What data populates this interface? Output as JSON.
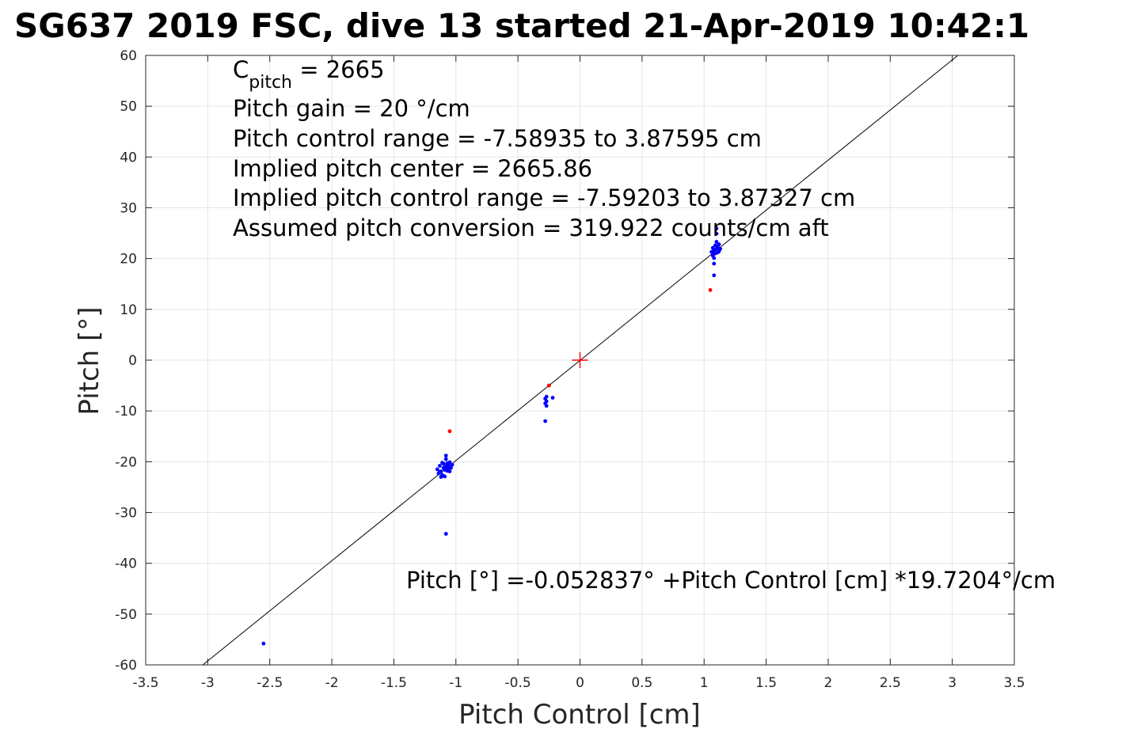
{
  "chart_data": {
    "type": "scatter",
    "title": "SG637 2019 FSC, dive 13 started 21-Apr-2019 10:42:1",
    "xlabel": "Pitch Control [cm]",
    "ylabel": "Pitch [°]",
    "xlim": [
      -3.5,
      3.5
    ],
    "ylim": [
      -60,
      60
    ],
    "xticks": [
      "-3.5",
      "-3",
      "-2.5",
      "-2",
      "-1.5",
      "-1",
      "-0.5",
      "0",
      "0.5",
      "1",
      "1.5",
      "2",
      "2.5",
      "3",
      "3.5"
    ],
    "yticks": [
      "60",
      "50",
      "40",
      "30",
      "20",
      "10",
      "0",
      "-10",
      "-20",
      "-30",
      "-40",
      "-50",
      "-60"
    ],
    "grid": true,
    "annotations": {
      "c_pitch_main": "C",
      "c_pitch_sub": "pitch",
      "c_pitch_value": " = 2665",
      "pitch_gain": "Pitch gain = 20 °/cm",
      "control_range": "Pitch control range = -7.58935 to 3.87595 cm",
      "implied_center": "Implied pitch center = 2665.86",
      "implied_range": "Implied pitch control range = -7.59203 to 3.87327 cm",
      "conversion": "Assumed pitch conversion = 319.922 counts/cm aft",
      "fit_equation": "Pitch [°] =-0.052837° +Pitch Control [cm] *19.7204°/cm"
    },
    "fit_line": {
      "intercept": -0.052837,
      "slope": 19.7204,
      "color": "#000000"
    },
    "center_marker": {
      "x": 0,
      "y": 0,
      "color": "#ff0000"
    },
    "series": [
      {
        "color": "#0000ff",
        "points": [
          [
            -2.55,
            -55.8
          ],
          [
            -1.08,
            -34.2
          ],
          [
            -1.15,
            -21.5
          ],
          [
            -1.14,
            -22.3
          ],
          [
            -1.13,
            -20.8
          ],
          [
            -1.12,
            -23.0
          ],
          [
            -1.12,
            -21.9
          ],
          [
            -1.11,
            -22.6
          ],
          [
            -1.1,
            -21.2
          ],
          [
            -1.1,
            -20.4
          ],
          [
            -1.09,
            -22.9
          ],
          [
            -1.09,
            -21.6
          ],
          [
            -1.08,
            -20.9
          ],
          [
            -1.08,
            -19.5
          ],
          [
            -1.08,
            -18.8
          ],
          [
            -1.07,
            -21.8
          ],
          [
            -1.07,
            -20.3
          ],
          [
            -1.06,
            -21.4
          ],
          [
            -1.06,
            -20.7
          ],
          [
            -1.05,
            -21.9
          ],
          [
            -1.05,
            -20.1
          ],
          [
            -1.04,
            -21.2
          ],
          [
            -1.03,
            -20.6
          ],
          [
            -1.13,
            -22.0
          ],
          [
            -1.11,
            -20.2
          ],
          [
            -0.28,
            -7.6
          ],
          [
            -0.28,
            -8.5
          ],
          [
            -0.27,
            -8.1
          ],
          [
            -0.27,
            -7.2
          ],
          [
            -0.27,
            -9.0
          ],
          [
            -0.28,
            -12.0
          ],
          [
            -0.22,
            -7.4
          ],
          [
            1.06,
            21.3
          ],
          [
            1.07,
            20.6
          ],
          [
            1.07,
            22.1
          ],
          [
            1.08,
            21.6
          ],
          [
            1.08,
            20.1
          ],
          [
            1.09,
            22.6
          ],
          [
            1.09,
            21.0
          ],
          [
            1.1,
            23.3
          ],
          [
            1.1,
            21.9
          ],
          [
            1.1,
            24.9
          ],
          [
            1.11,
            22.4
          ],
          [
            1.11,
            21.2
          ],
          [
            1.12,
            22.8
          ],
          [
            1.12,
            21.4
          ],
          [
            1.08,
            19.0
          ],
          [
            1.08,
            16.7
          ],
          [
            1.1,
            25.9
          ],
          [
            1.13,
            21.9
          ]
        ]
      },
      {
        "color": "#ff0000",
        "points": [
          [
            -1.05,
            -14.0
          ],
          [
            -0.25,
            -5.0
          ],
          [
            1.05,
            13.8
          ]
        ]
      }
    ]
  }
}
